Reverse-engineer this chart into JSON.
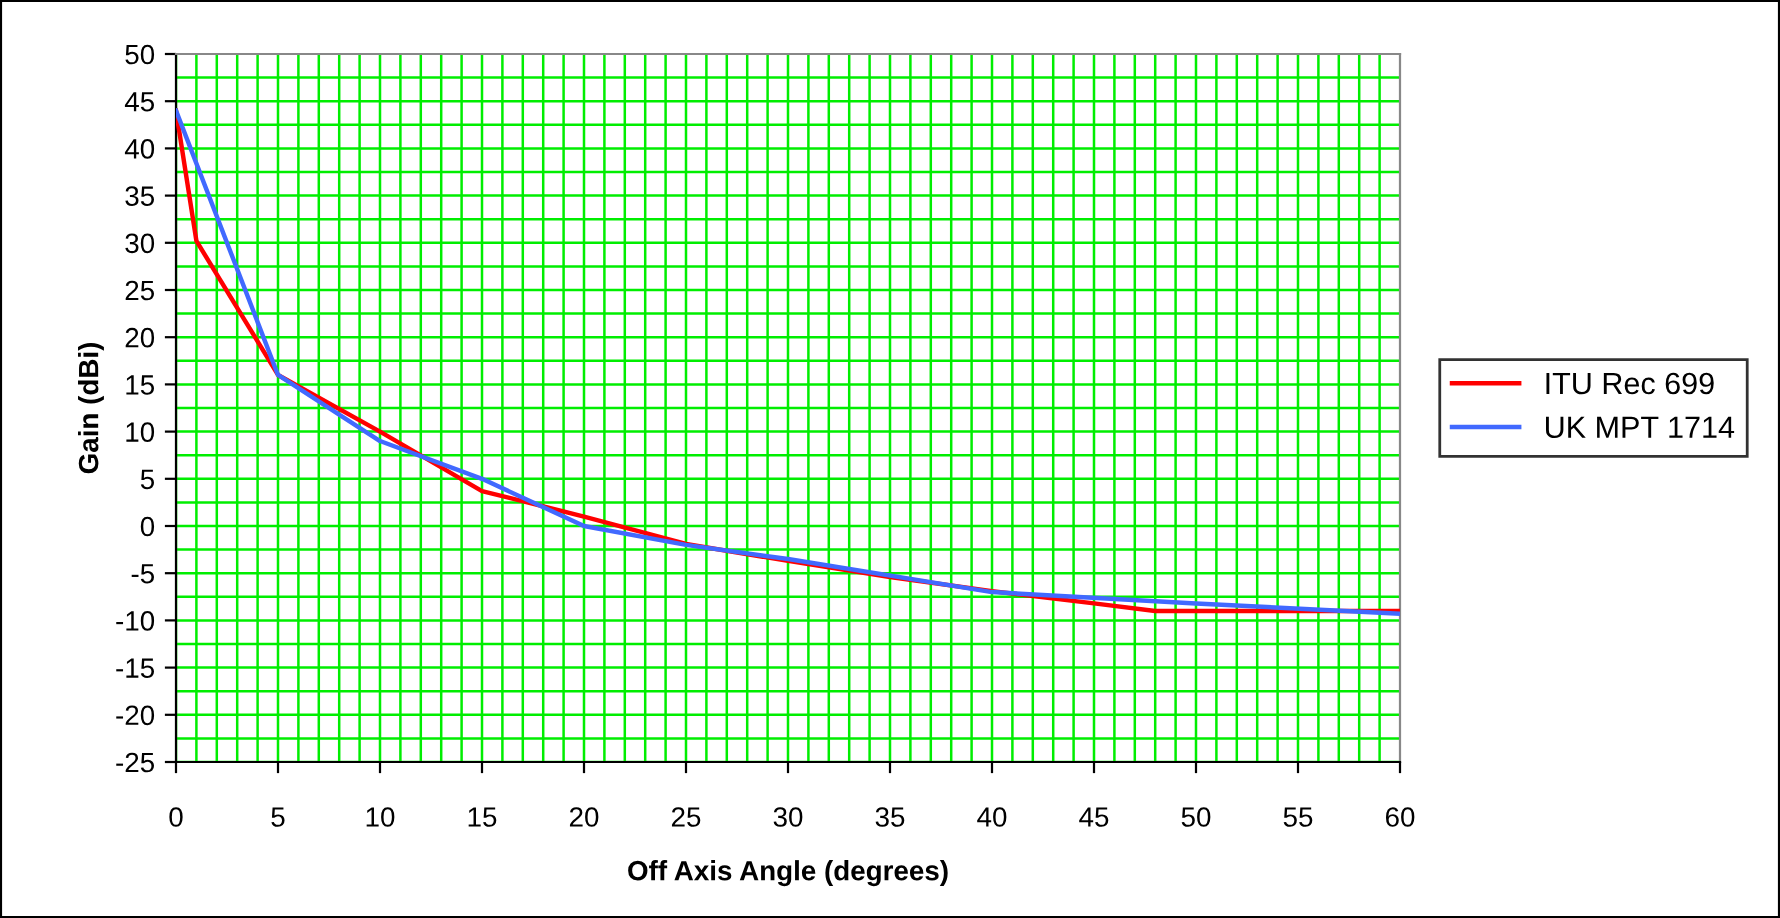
{
  "chart_data": {
    "type": "line",
    "xlabel": "Off Axis Angle (degrees)",
    "ylabel": "Gain (dBi)",
    "xlim": [
      0,
      60
    ],
    "xticks": [
      0,
      5,
      10,
      15,
      20,
      25,
      30,
      35,
      40,
      45,
      50,
      55,
      60
    ],
    "ylim": [
      -25,
      50
    ],
    "yticks": [
      -25,
      -20,
      -15,
      -10,
      -5,
      0,
      5,
      10,
      15,
      20,
      25,
      30,
      35,
      40,
      45,
      50
    ],
    "grid": true,
    "legend": "right",
    "marker": "none",
    "line_style": "solid",
    "series": [
      {
        "name": "ITU Rec 699",
        "color": "#ff0000",
        "x": [
          0,
          1,
          5,
          10,
          15,
          20,
          25,
          30,
          35,
          40,
          45,
          48,
          60
        ],
        "values": [
          44,
          30.2,
          16,
          10,
          3.7,
          1,
          -1.9,
          -3.7,
          -5.4,
          -6.9,
          -8.2,
          -9,
          -9
        ]
      },
      {
        "name": "UK MPT 1714",
        "color": "#4169ff",
        "x": [
          0,
          5,
          10,
          15,
          20,
          25,
          30,
          40,
          50,
          60
        ],
        "values": [
          44,
          16,
          9,
          5,
          0,
          -2,
          -3.5,
          -7,
          -8.2,
          -9.3
        ]
      }
    ]
  }
}
